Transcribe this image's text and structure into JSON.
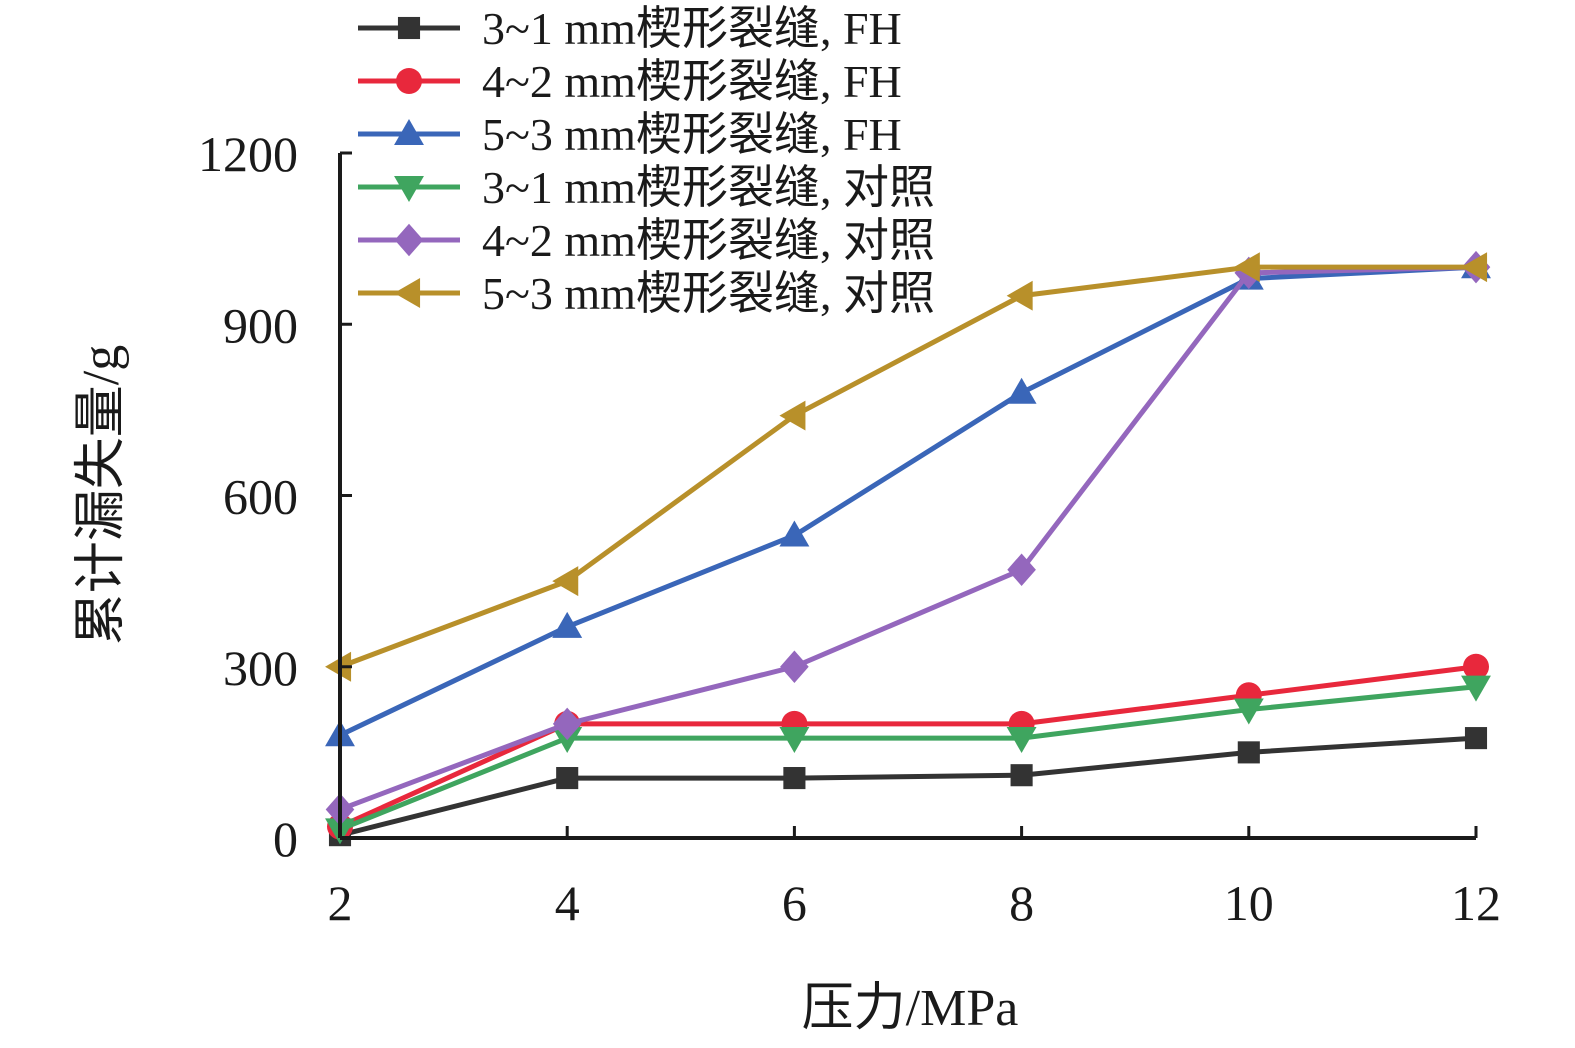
{
  "chart_data": {
    "type": "line",
    "xlabel": "压力/MPa",
    "ylabel": "累计漏失量/g",
    "x": [
      2,
      4,
      6,
      8,
      10,
      12
    ],
    "xlim": [
      2,
      12
    ],
    "ylim": [
      0,
      1200
    ],
    "x_ticks": [
      "2",
      "4",
      "6",
      "8",
      "10",
      "12"
    ],
    "y_ticks": [
      "0",
      "300",
      "600",
      "900",
      "1200"
    ],
    "grid": false,
    "legend_position": "top",
    "series": [
      {
        "name": "3~1 mm楔形裂缝, FH",
        "color": "#333333",
        "marker": "square",
        "values": [
          5,
          105,
          105,
          110,
          150,
          175
        ]
      },
      {
        "name": "4~2 mm楔形裂缝, FH",
        "color": "#e8283c",
        "marker": "circle",
        "values": [
          20,
          200,
          200,
          200,
          250,
          300
        ]
      },
      {
        "name": "5~3 mm楔形裂缝, FH",
        "color": "#3a66b8",
        "marker": "triangle-up",
        "values": [
          180,
          370,
          530,
          780,
          980,
          1000
        ]
      },
      {
        "name": "3~1 mm楔形裂缝, 对照",
        "color": "#3fa55f",
        "marker": "triangle-down",
        "values": [
          15,
          175,
          175,
          175,
          225,
          265
        ]
      },
      {
        "name": "4~2 mm楔形裂缝, 对照",
        "color": "#9467bd",
        "marker": "diamond",
        "values": [
          50,
          200,
          300,
          470,
          990,
          1000
        ]
      },
      {
        "name": "5~3 mm楔形裂缝, 对照",
        "color": "#b8902a",
        "marker": "triangle-left",
        "values": [
          300,
          450,
          740,
          950,
          1000,
          1000
        ]
      }
    ]
  }
}
